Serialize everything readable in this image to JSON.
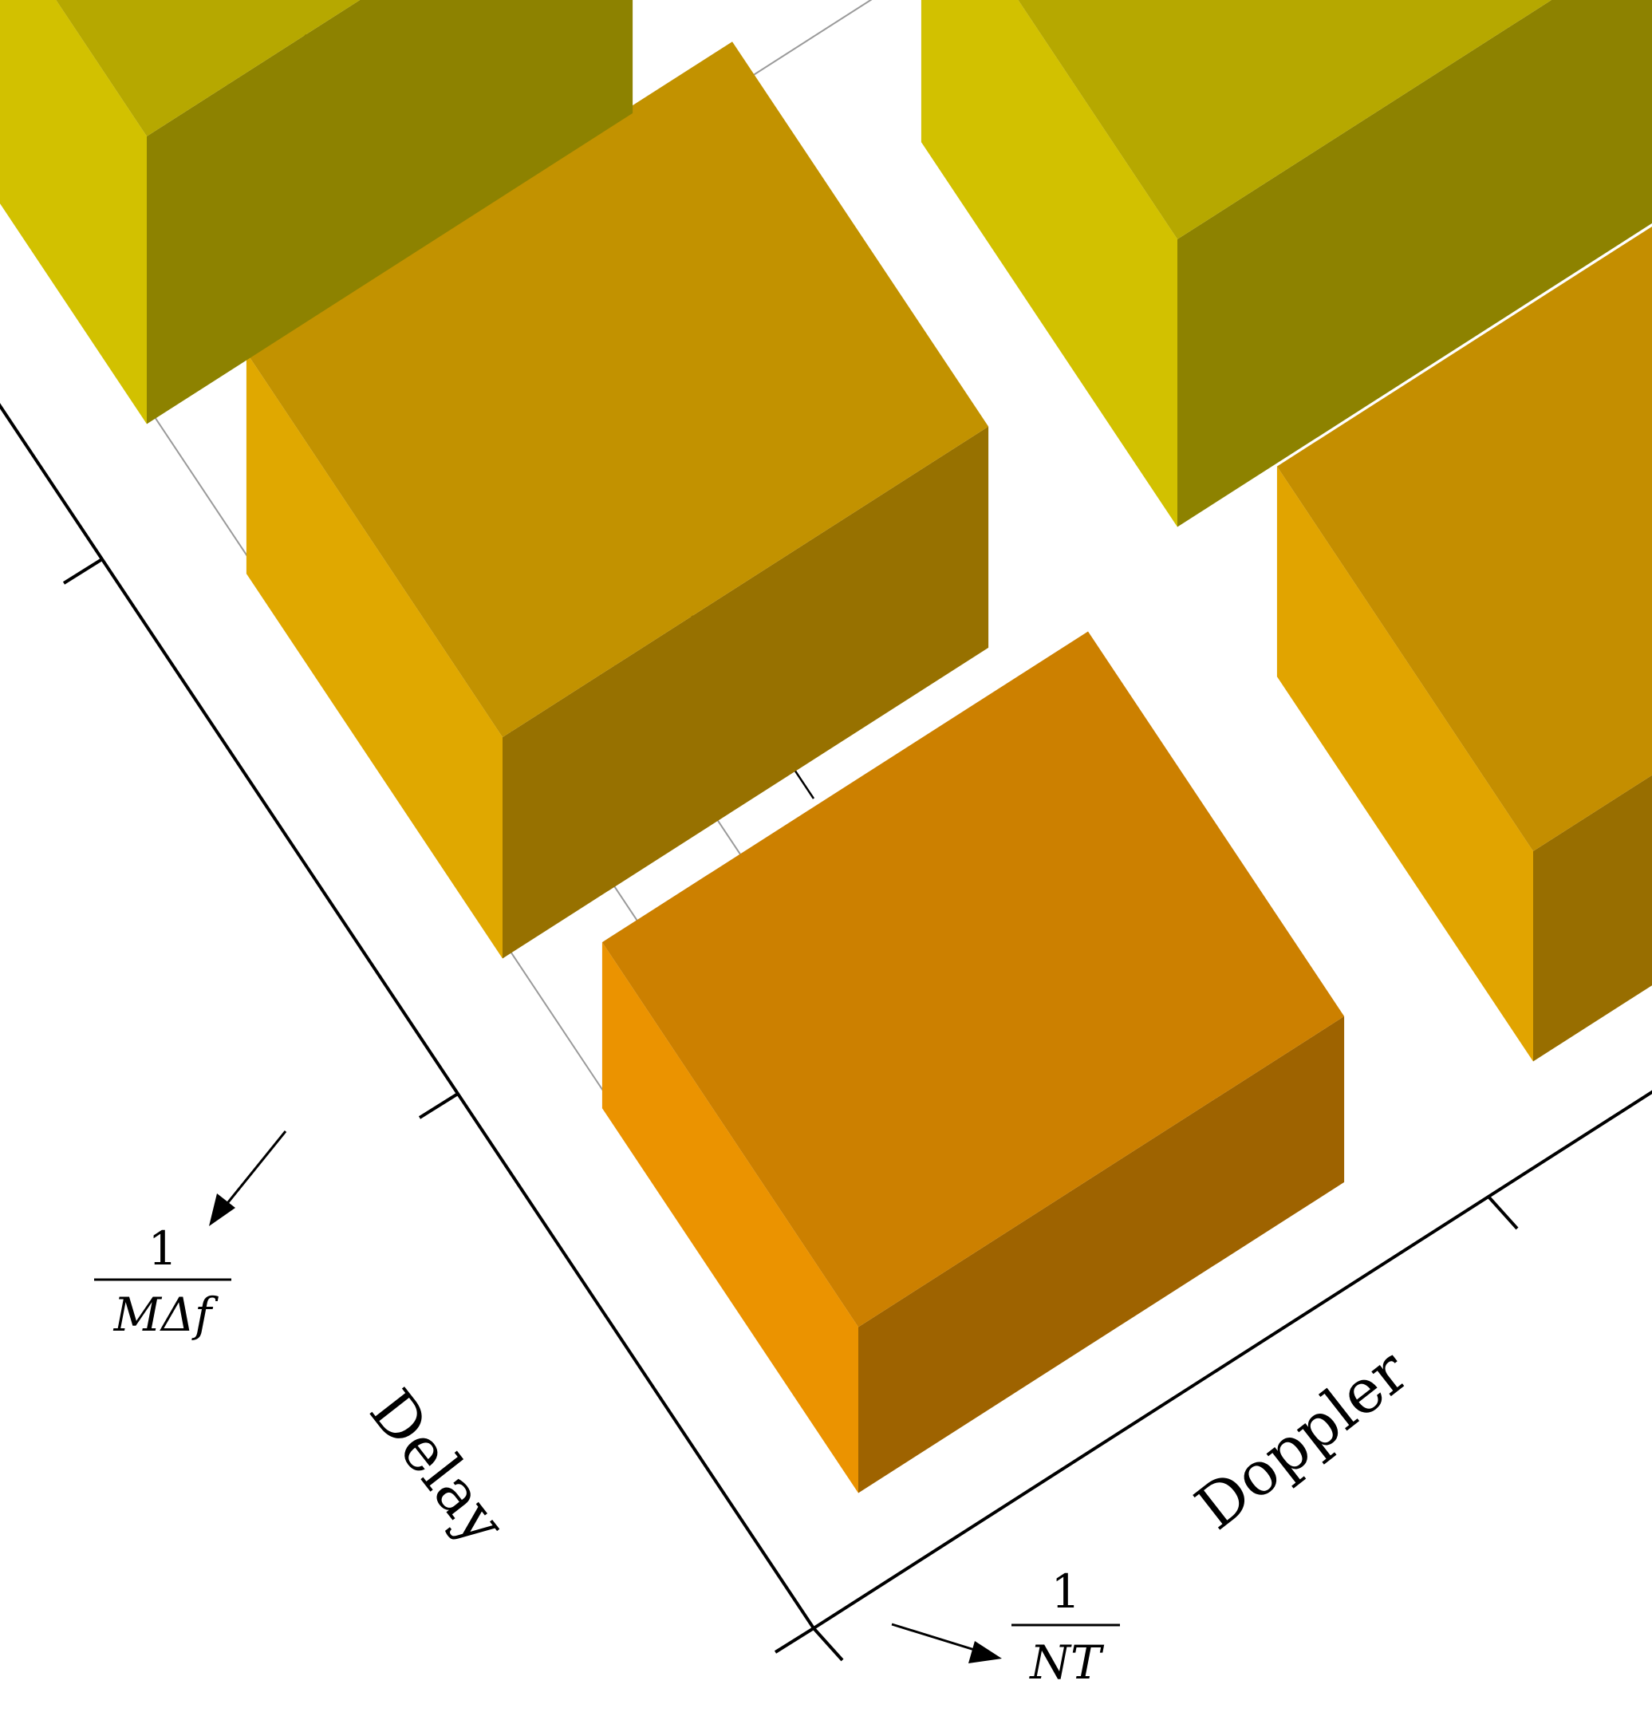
{
  "chart_data": {
    "type": "bar3d",
    "xlabel": "Delay",
    "ylabel": "Doppler",
    "zlim": [
      0,
      0.6
    ],
    "z_ticks": [
      "0.0",
      "0.2",
      "0.4",
      "0.6"
    ],
    "grid": true,
    "colormap": "value",
    "delay_unit": {
      "numerator": "1",
      "denominator": "MΔf"
    },
    "doppler_unit": {
      "numerator": "1",
      "denominator": "NT"
    },
    "values": [
      [
        0.2,
        0.25,
        0.31,
        0.37,
        0.43,
        0.48,
        0.52,
        0.55,
        0.57,
        0.55,
        0.5,
        0.4
      ],
      [
        0.25,
        0.31,
        0.37,
        0.44,
        0.49,
        0.53,
        0.57,
        0.58,
        0.56,
        0.52,
        0.44,
        0.33
      ],
      [
        0.3,
        0.37,
        0.44,
        0.5,
        0.54,
        0.58,
        0.59,
        0.57,
        0.53,
        0.46,
        0.37,
        0.27
      ],
      [
        0.34,
        0.42,
        0.49,
        0.55,
        0.59,
        0.6,
        0.58,
        0.54,
        0.48,
        0.4,
        0.31,
        0.21
      ],
      [
        0.37,
        0.46,
        0.53,
        0.58,
        0.6,
        0.59,
        0.55,
        0.49,
        0.42,
        0.34,
        0.25,
        0.16
      ],
      [
        0.39,
        0.48,
        0.55,
        0.58,
        0.58,
        0.54,
        0.49,
        0.42,
        0.35,
        0.27,
        0.19,
        0.11
      ],
      [
        0.38,
        0.46,
        0.52,
        0.54,
        0.52,
        0.47,
        0.41,
        0.34,
        0.27,
        0.2,
        0.13,
        0.07
      ],
      [
        0.32,
        0.4,
        0.45,
        0.46,
        0.43,
        0.38,
        0.32,
        0.26,
        0.2,
        0.14,
        0.08,
        0.04
      ],
      [
        0.26,
        0.33,
        0.37,
        0.37,
        0.34,
        0.29,
        0.24,
        0.18,
        0.13,
        0.08,
        0.05,
        0.02
      ],
      [
        0.2,
        0.26,
        0.29,
        0.28,
        0.25,
        0.21,
        0.16,
        0.12,
        0.08,
        0.05,
        0.03,
        0.01
      ],
      [
        0.15,
        0.19,
        0.21,
        0.2,
        0.18,
        0.14,
        0.11,
        0.08,
        0.05,
        0.03,
        0.02,
        0.01
      ]
    ]
  }
}
